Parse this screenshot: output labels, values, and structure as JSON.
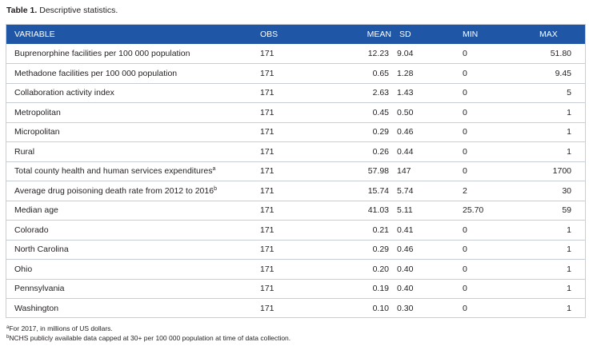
{
  "caption": {
    "label": "Table 1.",
    "text": "Descriptive statistics."
  },
  "headers": [
    "VARIABLE",
    "OBS",
    "MEAN",
    "SD",
    "MIN",
    "MAX"
  ],
  "rows": [
    {
      "variable": "Buprenorphine facilities per 100 000 population",
      "sup": "",
      "obs": "171",
      "mean": "12.23",
      "sd": "9.04",
      "min": "0",
      "max": "51.80"
    },
    {
      "variable": "Methadone facilities per 100 000 population",
      "sup": "",
      "obs": "171",
      "mean": "0.65",
      "sd": "1.28",
      "min": "0",
      "max": "9.45"
    },
    {
      "variable": "Collaboration activity index",
      "sup": "",
      "obs": "171",
      "mean": "2.63",
      "sd": "1.43",
      "min": "0",
      "max": "5"
    },
    {
      "variable": "Metropolitan",
      "sup": "",
      "obs": "171",
      "mean": "0.45",
      "sd": "0.50",
      "min": "0",
      "max": "1"
    },
    {
      "variable": "Micropolitan",
      "sup": "",
      "obs": "171",
      "mean": "0.29",
      "sd": "0.46",
      "min": "0",
      "max": "1"
    },
    {
      "variable": "Rural",
      "sup": "",
      "obs": "171",
      "mean": "0.26",
      "sd": "0.44",
      "min": "0",
      "max": "1"
    },
    {
      "variable": "Total county health and human services expenditures",
      "sup": "a",
      "obs": "171",
      "mean": "57.98",
      "sd": "147",
      "min": "0",
      "max": "1700"
    },
    {
      "variable": "Average drug poisoning death rate from 2012 to 2016",
      "sup": "b",
      "obs": "171",
      "mean": "15.74",
      "sd": "5.74",
      "min": "2",
      "max": "30"
    },
    {
      "variable": "Median age",
      "sup": "",
      "obs": "171",
      "mean": "41.03",
      "sd": "5.11",
      "min": "25.70",
      "max": "59"
    },
    {
      "variable": "Colorado",
      "sup": "",
      "obs": "171",
      "mean": "0.21",
      "sd": "0.41",
      "min": "0",
      "max": "1"
    },
    {
      "variable": "North Carolina",
      "sup": "",
      "obs": "171",
      "mean": "0.29",
      "sd": "0.46",
      "min": "0",
      "max": "1"
    },
    {
      "variable": "Ohio",
      "sup": "",
      "obs": "171",
      "mean": "0.20",
      "sd": "0.40",
      "min": "0",
      "max": "1"
    },
    {
      "variable": "Pennsylvania",
      "sup": "",
      "obs": "171",
      "mean": "0.19",
      "sd": "0.40",
      "min": "0",
      "max": "1"
    },
    {
      "variable": "Washington",
      "sup": "",
      "obs": "171",
      "mean": "0.10",
      "sd": "0.30",
      "min": "0",
      "max": "1"
    }
  ],
  "footnotes": [
    {
      "mark": "a",
      "text": "For 2017, in millions of US dollars."
    },
    {
      "mark": "b",
      "text": "NCHS publicly available data capped at 30+ per 100 000 population at time of data collection."
    }
  ],
  "colors": {
    "header_bg": "#1f56a5",
    "header_text": "#ffffff",
    "border": "#c8ced6",
    "text": "#231f20"
  }
}
